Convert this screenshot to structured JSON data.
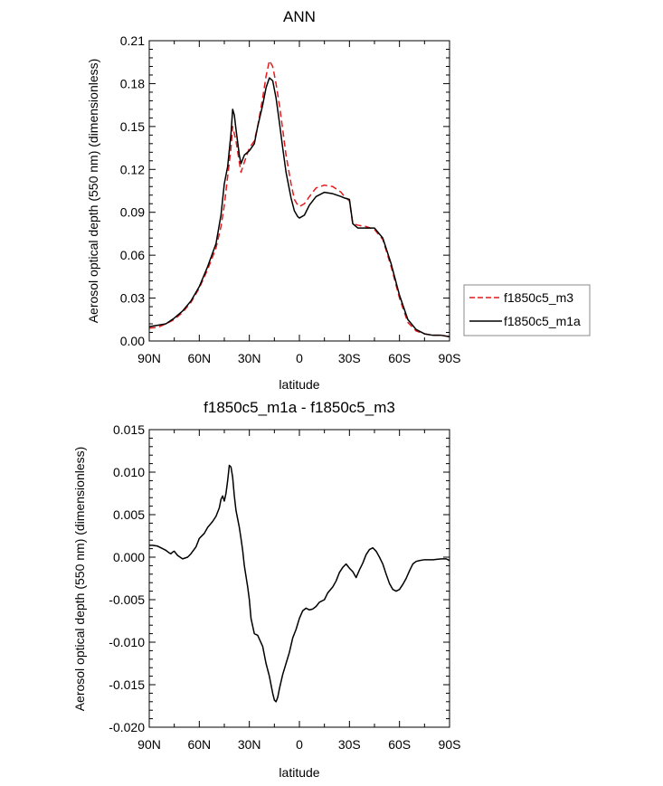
{
  "chart_data": [
    {
      "type": "line",
      "title": "ANN",
      "xlabel": "latitude",
      "ylabel": "Aerosol optical depth (550 nm) (dimensionless)",
      "xlim": [
        90,
        -90
      ],
      "ylim": [
        0,
        0.21
      ],
      "x_ticks": [
        90,
        60,
        30,
        0,
        -30,
        -60,
        -90
      ],
      "x_tick_labels": [
        "90N",
        "60N",
        "30N",
        "0",
        "30S",
        "60S",
        "90S"
      ],
      "y_ticks": [
        0,
        0.03,
        0.06,
        0.09,
        0.12,
        0.15,
        0.18,
        0.21
      ],
      "y_tick_labels": [
        "0.00",
        "0.03",
        "0.06",
        "0.09",
        "0.12",
        "0.15",
        "0.18",
        "0.21"
      ],
      "legend_position": "right",
      "series": [
        {
          "name": "f1850c5_m3",
          "color": "#e41a1c",
          "dash": "dashed",
          "x": [
            90,
            85,
            80,
            75,
            70,
            65,
            60,
            55,
            50,
            47,
            45,
            43,
            41,
            40,
            38,
            36,
            35,
            33,
            30,
            27,
            25,
            22,
            20,
            18,
            16,
            14,
            12,
            10,
            8,
            5,
            3,
            1,
            0,
            -3,
            -6,
            -10,
            -15,
            -20,
            -25,
            -27,
            -30,
            -32,
            -35,
            -40,
            -45,
            -50,
            -55,
            -60,
            -65,
            -70,
            -75,
            -80,
            -85,
            -90
          ],
          "y": [
            0.009,
            0.0095,
            0.012,
            0.015,
            0.02,
            0.027,
            0.037,
            0.05,
            0.065,
            0.08,
            0.095,
            0.115,
            0.135,
            0.15,
            0.14,
            0.125,
            0.118,
            0.125,
            0.135,
            0.14,
            0.15,
            0.17,
            0.185,
            0.196,
            0.192,
            0.18,
            0.165,
            0.148,
            0.13,
            0.11,
            0.099,
            0.095,
            0.094,
            0.096,
            0.101,
            0.107,
            0.109,
            0.108,
            0.104,
            0.101,
            0.098,
            0.082,
            0.081,
            0.08,
            0.078,
            0.071,
            0.052,
            0.03,
            0.013,
            0.007,
            0.005,
            0.004,
            0.004,
            0.003
          ]
        },
        {
          "name": "f1850c5_m1a",
          "color": "#000000",
          "dash": "solid",
          "x": [
            90,
            85,
            80,
            75,
            70,
            65,
            60,
            55,
            50,
            47,
            45,
            43,
            41,
            40,
            39,
            38,
            36,
            35,
            33,
            30,
            27,
            25,
            22,
            20,
            18,
            16,
            14,
            12,
            10,
            8,
            5,
            3,
            1,
            0,
            -3,
            -6,
            -10,
            -15,
            -20,
            -25,
            -27,
            -30,
            -32,
            -35,
            -40,
            -45,
            -50,
            -55,
            -60,
            -65,
            -70,
            -75,
            -80,
            -85,
            -90
          ],
          "y": [
            0.01,
            0.011,
            0.012,
            0.016,
            0.021,
            0.028,
            0.038,
            0.052,
            0.068,
            0.088,
            0.11,
            0.122,
            0.145,
            0.162,
            0.158,
            0.148,
            0.13,
            0.124,
            0.13,
            0.133,
            0.138,
            0.15,
            0.165,
            0.177,
            0.184,
            0.182,
            0.17,
            0.153,
            0.135,
            0.118,
            0.1,
            0.091,
            0.087,
            0.086,
            0.088,
            0.095,
            0.101,
            0.104,
            0.103,
            0.101,
            0.1,
            0.099,
            0.082,
            0.079,
            0.079,
            0.079,
            0.072,
            0.054,
            0.032,
            0.015,
            0.008,
            0.005,
            0.004,
            0.004,
            0.003
          ]
        }
      ]
    },
    {
      "type": "line",
      "title": "f1850c5_m1a - f1850c5_m3",
      "xlabel": "latitude",
      "ylabel": "Aerosol optical depth (550 nm) (dimensionless)",
      "xlim": [
        90,
        -90
      ],
      "ylim": [
        -0.02,
        0.015
      ],
      "x_ticks": [
        90,
        60,
        30,
        0,
        -30,
        -60,
        -90
      ],
      "x_tick_labels": [
        "90N",
        "60N",
        "30N",
        "0",
        "30S",
        "60S",
        "90S"
      ],
      "y_ticks": [
        -0.02,
        -0.015,
        -0.01,
        -0.005,
        0,
        0.005,
        0.01,
        0.015
      ],
      "y_tick_labels": [
        "-0.020",
        "-0.015",
        "-0.010",
        "-0.005",
        "0.000",
        "0.005",
        "0.010",
        "0.015"
      ],
      "series": [
        {
          "color": "#000000",
          "dash": "solid",
          "x": [
            90,
            88,
            85,
            82,
            80,
            78,
            77,
            76,
            75,
            73,
            70,
            67,
            65,
            62,
            60,
            57,
            55,
            52,
            50,
            48,
            47,
            46,
            45,
            44,
            43,
            42,
            41,
            40,
            39,
            38,
            37,
            36,
            35,
            34,
            33,
            31,
            30,
            29,
            27,
            25,
            22,
            20,
            18,
            16,
            15,
            14,
            13,
            12,
            10,
            8,
            6,
            4,
            2,
            0,
            -2,
            -4,
            -6,
            -8,
            -10,
            -12,
            -15,
            -17,
            -20,
            -22,
            -24,
            -26,
            -28,
            -30,
            -32,
            -34,
            -36,
            -38,
            -40,
            -42,
            -44,
            -46,
            -48,
            -50,
            -52,
            -54,
            -56,
            -58,
            -60,
            -62,
            -64,
            -66,
            -68,
            -70,
            -72,
            -75,
            -80,
            -85,
            -88,
            -90
          ],
          "y": [
            0.0014,
            0.0014,
            0.0013,
            0.001,
            0.0008,
            0.0005,
            0.0004,
            0.0006,
            0.0007,
            0.0002,
            -0.0002,
            0.0,
            0.0004,
            0.0012,
            0.0022,
            0.0028,
            0.0035,
            0.0042,
            0.0048,
            0.0058,
            0.0068,
            0.0072,
            0.0066,
            0.0075,
            0.009,
            0.0108,
            0.0106,
            0.0094,
            0.0072,
            0.0055,
            0.0045,
            0.0035,
            0.0022,
            0.0008,
            -0.001,
            -0.0035,
            -0.005,
            -0.0072,
            -0.009,
            -0.0092,
            -0.0105,
            -0.0125,
            -0.014,
            -0.016,
            -0.0168,
            -0.017,
            -0.0165,
            -0.0155,
            -0.0138,
            -0.0125,
            -0.0112,
            -0.0095,
            -0.0085,
            -0.0072,
            -0.0063,
            -0.006,
            -0.0062,
            -0.0061,
            -0.0058,
            -0.0053,
            -0.005,
            -0.0042,
            -0.0035,
            -0.0028,
            -0.0018,
            -0.0012,
            -0.0008,
            -0.0013,
            -0.0017,
            -0.0024,
            -0.0015,
            -0.0007,
            0.0003,
            0.0009,
            0.0011,
            0.0007,
            0.0,
            -0.0008,
            -0.002,
            -0.0031,
            -0.0038,
            -0.004,
            -0.0038,
            -0.0032,
            -0.0025,
            -0.0016,
            -0.0008,
            -0.0005,
            -0.0004,
            -0.0003,
            -0.0003,
            -0.0002,
            -0.0002,
            -0.0004
          ]
        }
      ]
    }
  ]
}
